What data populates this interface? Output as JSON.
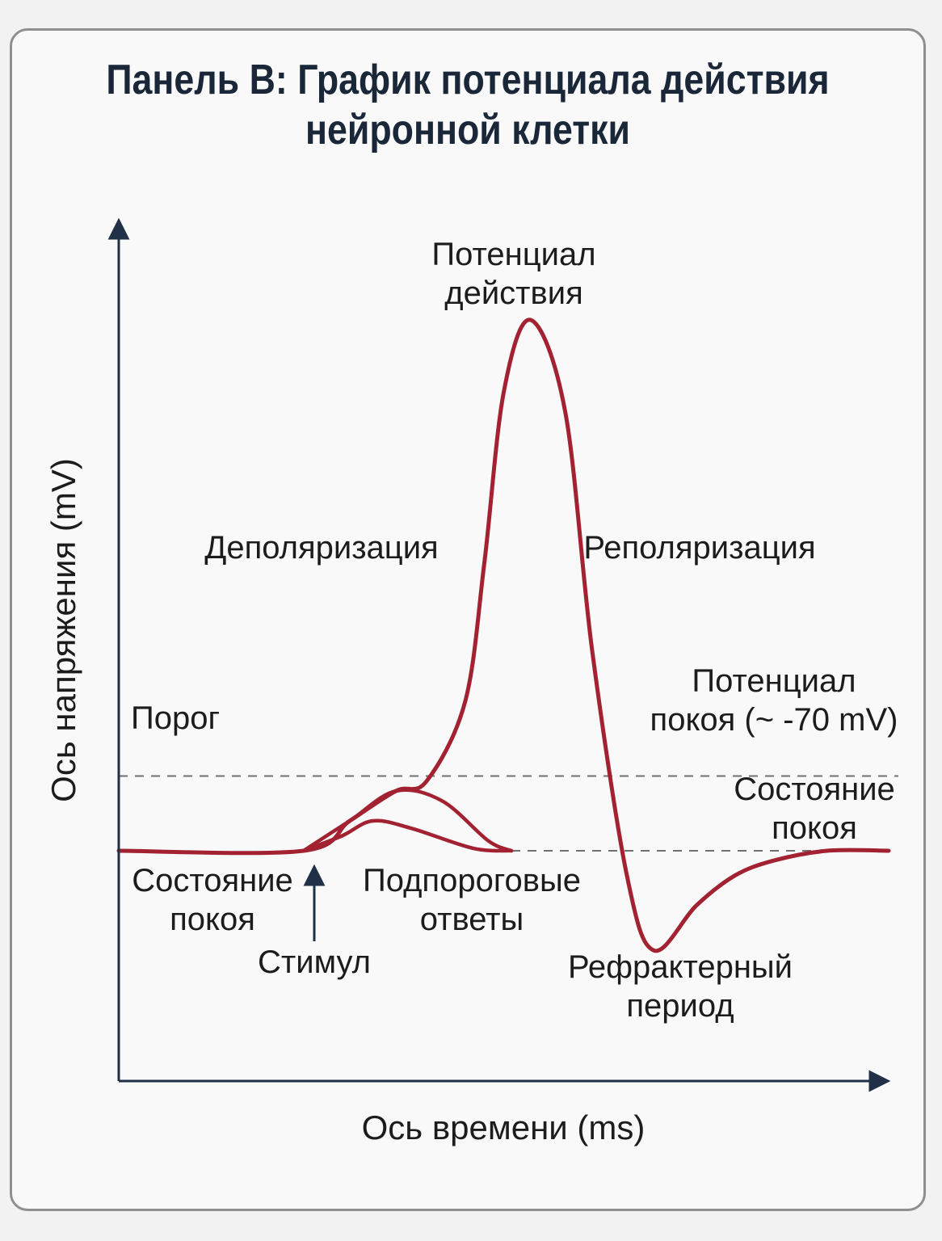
{
  "title": {
    "line1": "Панель B: График потенциала действия",
    "line2": "нейронной клетки"
  },
  "colors": {
    "curve": "#a32232",
    "axis": "#1f3047",
    "dashed": "#707070",
    "text": "#1c1c1c",
    "title": "#1a2738"
  },
  "chart_data": {
    "type": "line",
    "title": "Панель B: График потенциала действия нейронной клетки",
    "xlabel": "Ось времени (ms)",
    "ylabel": "Ось напряжения (mV)",
    "xlim": [
      0,
      10
    ],
    "ylim": [
      -100,
      50
    ],
    "grid": false,
    "reference_lines": [
      {
        "name": "threshold",
        "label": "Порог",
        "y": -55
      },
      {
        "name": "resting",
        "label": "Потенциал покоя (~ -70 mV)",
        "y": -70
      }
    ],
    "series": [
      {
        "name": "action_potential",
        "x": [
          0,
          2.4,
          3.0,
          3.6,
          4.0,
          4.5,
          4.75,
          5.0,
          5.35,
          5.8,
          6.15,
          6.6,
          6.95,
          7.5,
          8.0,
          8.5,
          9.2,
          10.0
        ],
        "y": [
          -70,
          -70,
          -64,
          -58,
          -56,
          -40,
          -12,
          22,
          36.5,
          18,
          -30,
          -75,
          -90,
          -81,
          -75,
          -72,
          -70,
          -70
        ]
      },
      {
        "name": "subthreshold_response_1",
        "x": [
          2.4,
          3.0,
          3.6,
          4.2,
          4.8,
          5.1
        ],
        "y": [
          -70,
          -64,
          -58,
          -60,
          -68,
          -70
        ]
      },
      {
        "name": "subthreshold_response_2",
        "x": [
          2.4,
          2.9,
          3.3,
          3.8,
          4.6,
          5.1
        ],
        "y": [
          -70,
          -67,
          -64,
          -65.5,
          -69.5,
          -70
        ]
      }
    ],
    "annotations": [
      {
        "name": "peak",
        "lines": [
          "Потенциал",
          "действия"
        ]
      },
      {
        "name": "depolarization",
        "lines": [
          "Деполяризация"
        ]
      },
      {
        "name": "repolarization",
        "lines": [
          "Реполяризация"
        ]
      },
      {
        "name": "threshold",
        "lines": [
          "Порог"
        ]
      },
      {
        "name": "resting-potential",
        "lines": [
          "Потенциал",
          "покоя (~ -70 mV)"
        ]
      },
      {
        "name": "rest-state-left",
        "lines": [
          "Состояние",
          "покоя"
        ]
      },
      {
        "name": "stimulus",
        "lines": [
          "Стимул"
        ]
      },
      {
        "name": "subthreshold",
        "lines": [
          "Подпороговые",
          "ответы"
        ]
      },
      {
        "name": "refractory",
        "lines": [
          "Рефрактерный",
          "период"
        ]
      },
      {
        "name": "rest-state-right",
        "lines": [
          "Состояние",
          "покоя"
        ]
      }
    ]
  }
}
